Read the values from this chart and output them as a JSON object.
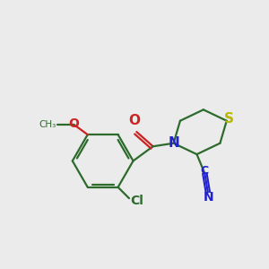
{
  "background_color": "#ebebeb",
  "bond_color": "#2d6b2d",
  "atom_colors": {
    "S": "#b8b800",
    "N": "#2222cc",
    "O": "#cc2222",
    "Cl": "#2d6b2d",
    "C_nitrile": "#2222cc"
  },
  "figsize": [
    3.0,
    3.0
  ],
  "dpi": 100
}
